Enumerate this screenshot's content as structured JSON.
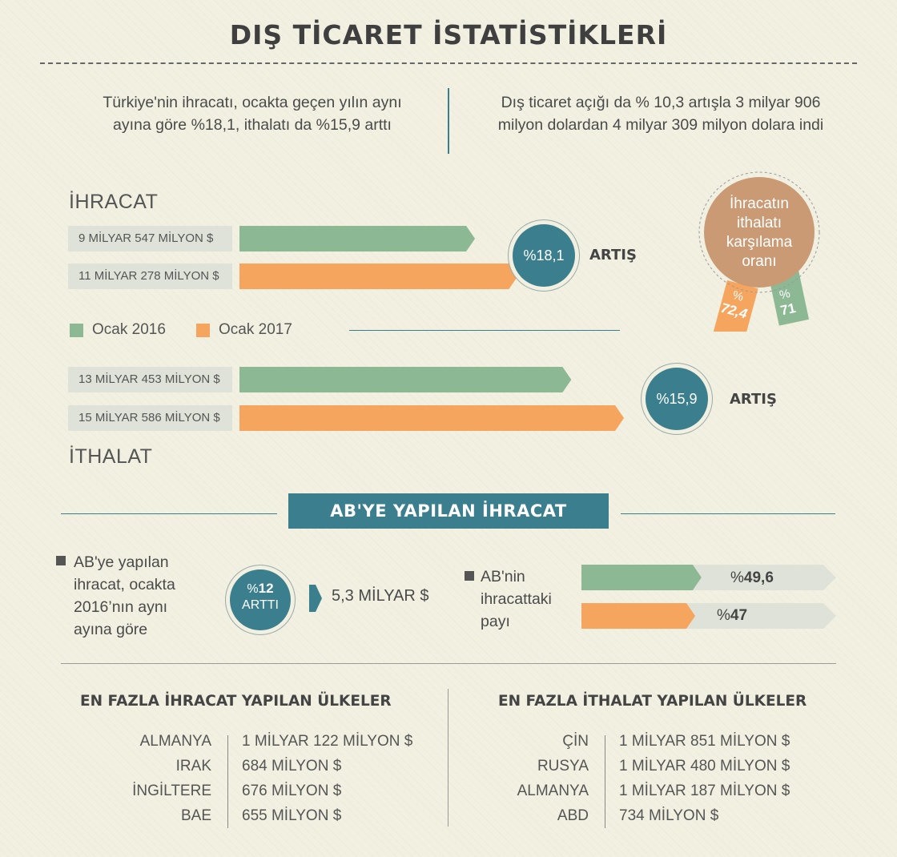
{
  "title": "DIŞ TİCARET İSTATİSTİKLERİ",
  "intro": {
    "left": "Türkiye'nin ihracatı, ocakta geçen yılın aynı ayına göre %18,1, ithalatı da %15,9 arttı",
    "right": "Dış ticaret açığı da % 10,3 artışla 3 milyar 906 milyon dolardan 4 milyar 309 milyon dolara indi"
  },
  "legend": {
    "series_2016": "Ocak 2016",
    "series_2017": "Ocak 2017"
  },
  "colors": {
    "green": "#8cb894",
    "orange": "#f6a55e",
    "teal": "#3b7f8e",
    "tan": "#c99a74",
    "grey_bar": "#dfe2d8"
  },
  "chart_data": [
    {
      "type": "bar",
      "title": "İHRACAT",
      "series": [
        {
          "name": "Ocak 2016",
          "label": "9 MİLYAR 547 MİLYON $",
          "value": 9547
        },
        {
          "name": "Ocak 2017",
          "label": "11  MİLYAR 278 MİLYON $",
          "value": 11278
        }
      ],
      "change_label": "%18,1",
      "change_text": "ARTIŞ"
    },
    {
      "type": "bar",
      "title": "İTHALAT",
      "series": [
        {
          "name": "Ocak 2016",
          "label": "13 MİLYAR 453 MİLYON $",
          "value": 13453
        },
        {
          "name": "Ocak 2017",
          "label": "15 MİLYAR 586 MİLYON $",
          "value": 15586
        }
      ],
      "change_label": "%15,9",
      "change_text": "ARTIŞ"
    },
    {
      "type": "bar",
      "title": "AB'nin ihracattaki payı",
      "series": [
        {
          "name": "Ocak 2016",
          "value": 49.6,
          "prefix": "%",
          "value_text": "49,6"
        },
        {
          "name": "Ocak 2017",
          "value": 47,
          "prefix": "%",
          "value_text": "47"
        }
      ],
      "max": 100
    }
  ],
  "coverage": {
    "label": "İhracatın ithalatı karşılama oranı",
    "ribbon_2017": {
      "prefix": "%",
      "value": "72,4"
    },
    "ribbon_2016": {
      "prefix": "%",
      "value": "71"
    }
  },
  "ab_section": {
    "banner": "AB'YE YAPILAN İHRACAT",
    "left_text": "AB'ye yapılan ihracat, ocakta 2016’nın aynı ayına göre",
    "circle_prefix": "%",
    "circle_value": "12",
    "circle_text": "ARTTI",
    "amount": "5,3 MİLYAR $",
    "share_text": "AB'nin ihracattaki payı"
  },
  "export_countries": {
    "title": "EN FAZLA İHRACAT YAPILAN ÜLKELER",
    "rows": [
      {
        "country": "ALMANYA",
        "amount": "1 MİLYAR 122 MİLYON $"
      },
      {
        "country": "IRAK",
        "amount": "684 MİLYON $"
      },
      {
        "country": "İNGİLTERE",
        "amount": "676 MİLYON $"
      },
      {
        "country": "BAE",
        "amount": "655 MİLYON $"
      }
    ]
  },
  "import_countries": {
    "title": "EN FAZLA İTHALAT YAPILAN ÜLKELER",
    "rows": [
      {
        "country": "ÇİN",
        "amount": "1 MİLYAR 851 MİLYON $"
      },
      {
        "country": "RUSYA",
        "amount": "1 MİLYAR 480 MİLYON $"
      },
      {
        "country": "ALMANYA",
        "amount": "1 MİLYAR 187 MİLYON $"
      },
      {
        "country": "ABD",
        "amount": "734 MİLYON $"
      }
    ]
  }
}
